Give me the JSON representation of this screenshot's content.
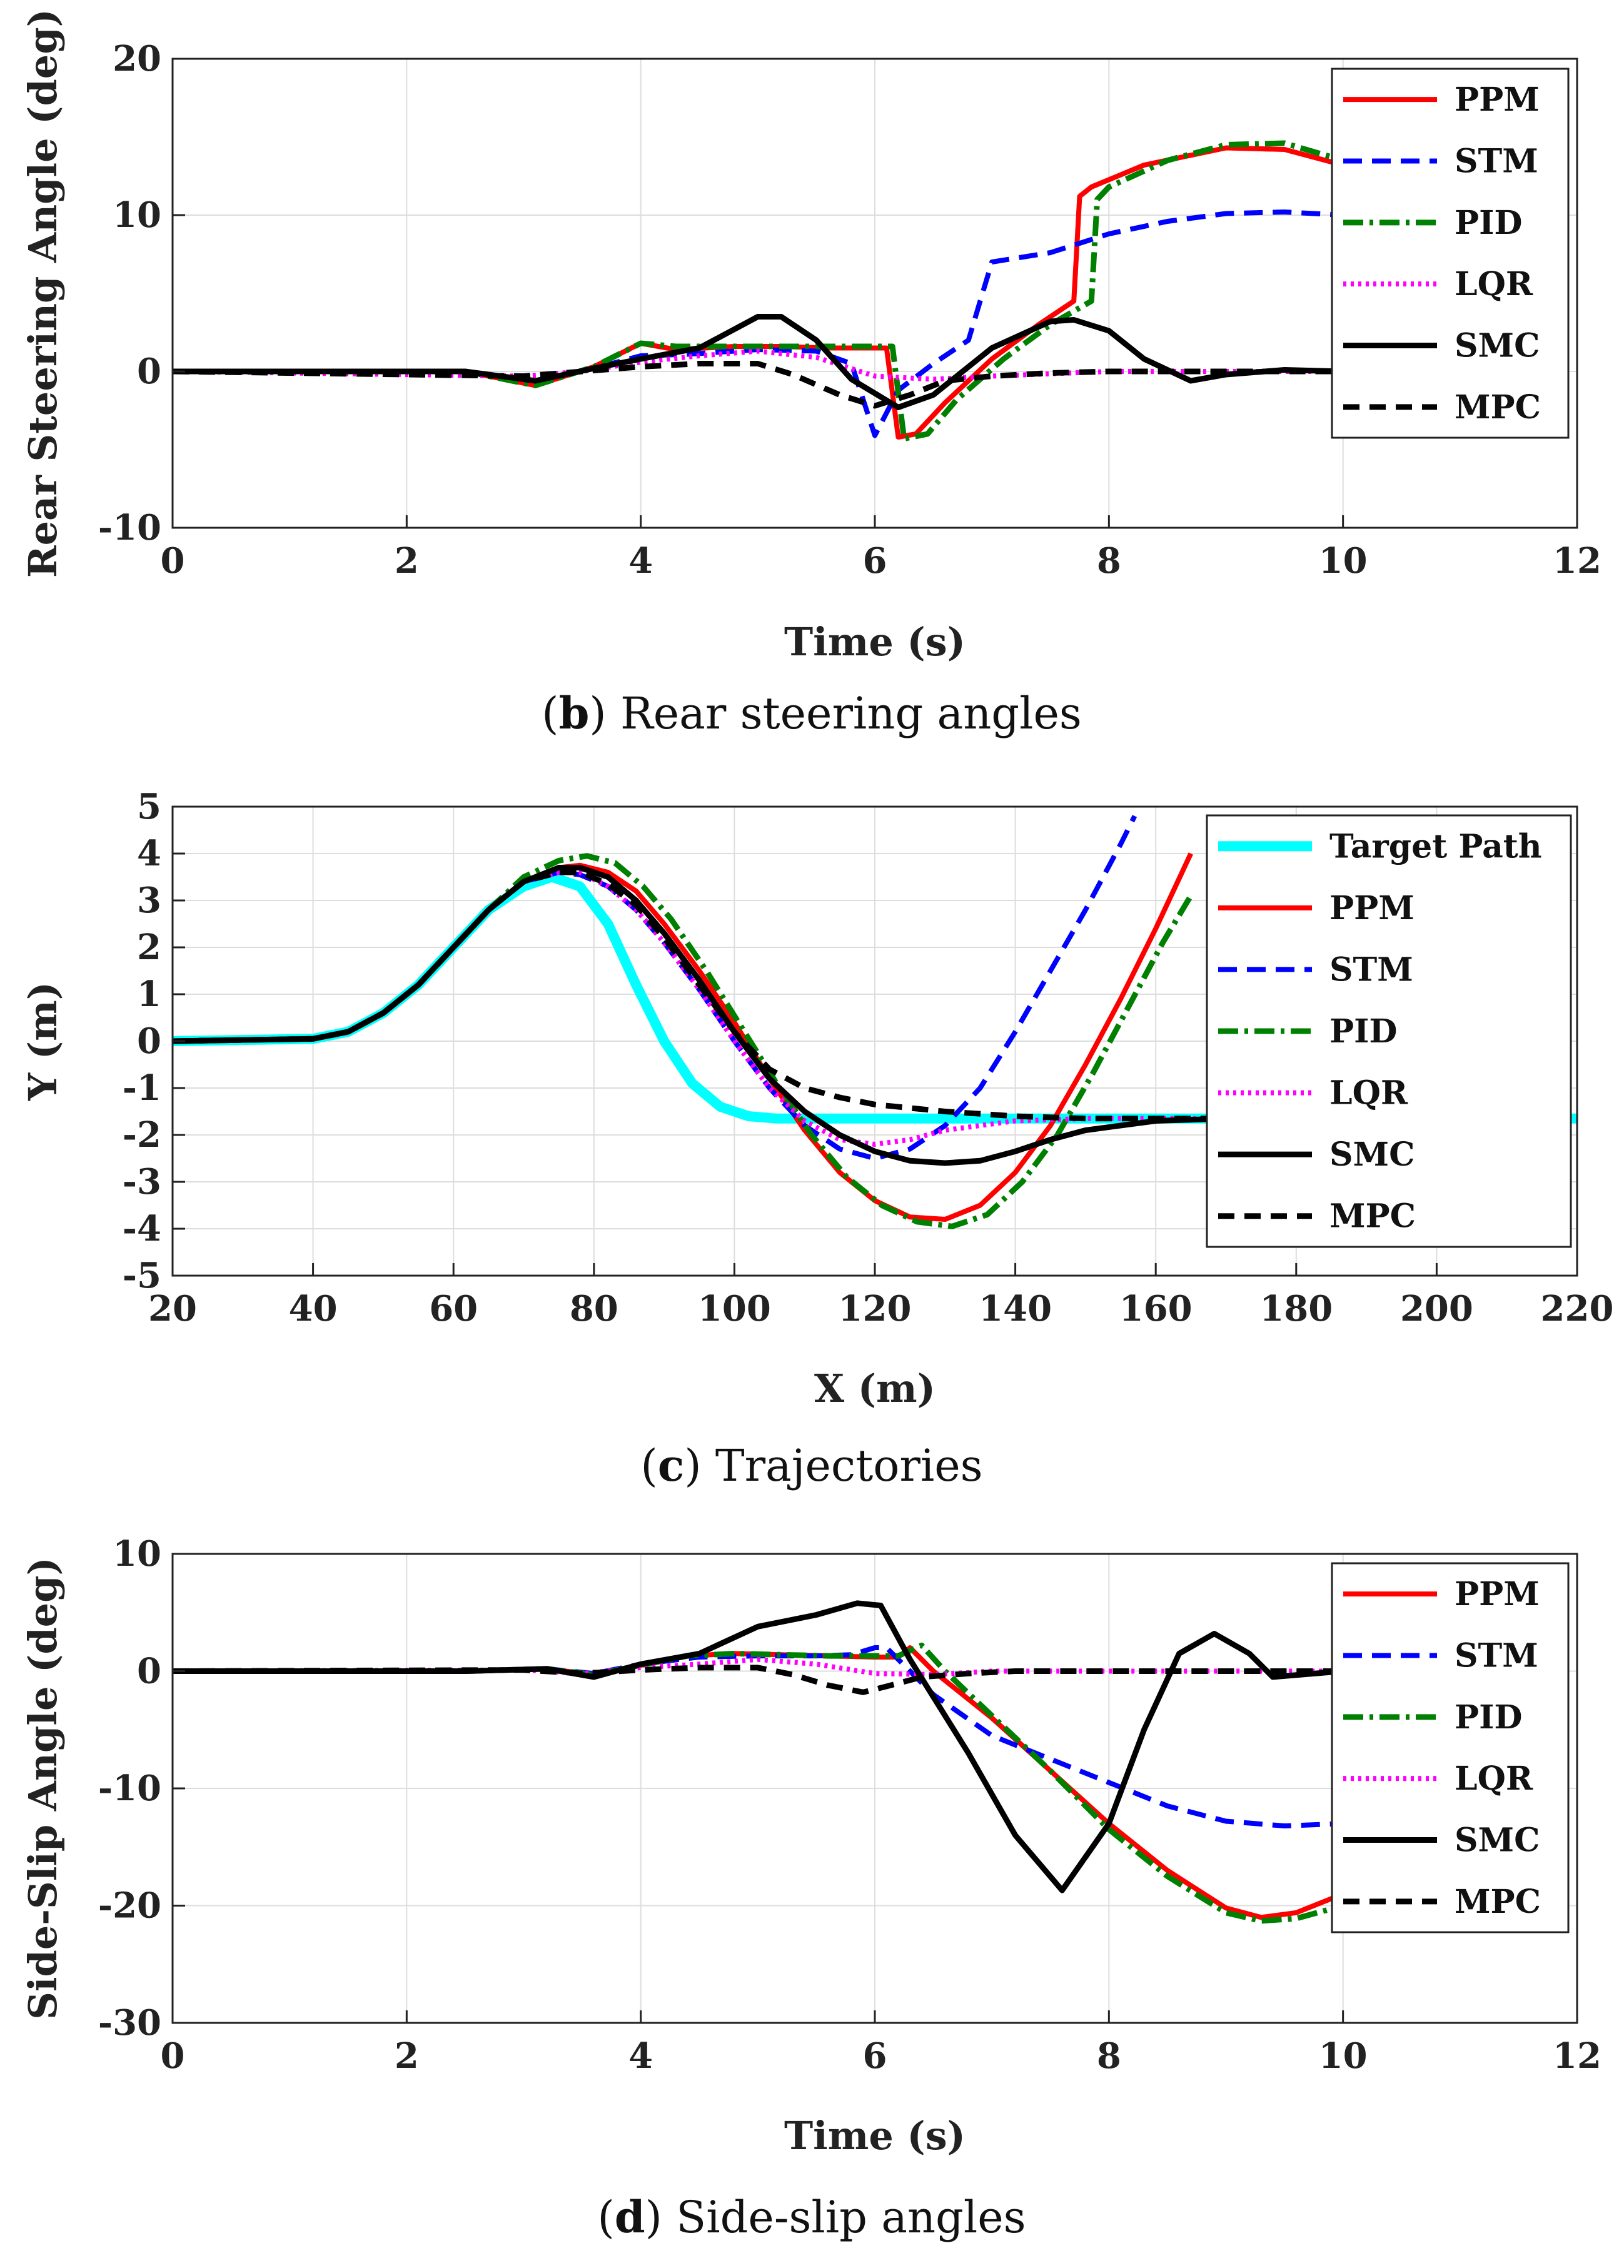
{
  "colors": {
    "target": "#00FFFF",
    "PPM": "#FF0000",
    "STM": "#0000FF",
    "PID": "#008000",
    "LQR": "#FF00FF",
    "SMC": "#000000",
    "MPC": "#000000"
  },
  "chart_data": [
    {
      "id": "b",
      "type": "line",
      "caption_letter": "b",
      "caption_text": " Rear steering angles",
      "title": "",
      "xlabel": "Time (s)",
      "ylabel": "Rear Steering Angle (deg)",
      "xlim": [
        0,
        12
      ],
      "ylim": [
        -10,
        20
      ],
      "xticks": [
        "0",
        "2",
        "4",
        "6",
        "8",
        "10",
        "12"
      ],
      "yticks": [
        "-10",
        "0",
        "10",
        "20"
      ],
      "legend_position": "top-right",
      "grid": true,
      "series": [
        {
          "name": "PPM",
          "style": "solid",
          "x": [
            0,
            2.5,
            3.1,
            3.6,
            4.0,
            4.3,
            4.8,
            5.2,
            5.6,
            6.1,
            6.2,
            6.35,
            6.6,
            7.0,
            7.4,
            7.7,
            7.75,
            7.85,
            8.3,
            9.0,
            9.5,
            10.0
          ],
          "y": [
            0,
            0,
            -0.9,
            0.3,
            1.8,
            1.4,
            1.6,
            1.6,
            1.5,
            1.5,
            -4.2,
            -4.0,
            -2,
            0.8,
            3,
            4.5,
            11.2,
            11.8,
            13.2,
            14.3,
            14.2,
            13.2
          ]
        },
        {
          "name": "STM",
          "style": "dashed",
          "x": [
            0,
            2.5,
            3.1,
            3.6,
            4.0,
            4.4,
            5.0,
            5.5,
            5.8,
            6.0,
            6.2,
            6.5,
            6.8,
            7.0,
            7.5,
            8.0,
            8.5,
            9.0,
            9.5,
            10.0
          ],
          "y": [
            0,
            0,
            -0.6,
            0.2,
            1.0,
            1.1,
            1.4,
            1.3,
            0.5,
            -4.1,
            -1.2,
            0.5,
            2,
            7,
            7.6,
            8.8,
            9.6,
            10.1,
            10.2,
            10.0
          ]
        },
        {
          "name": "PID",
          "style": "dashdot",
          "x": [
            0,
            2.5,
            3.1,
            3.6,
            4.0,
            4.3,
            4.8,
            5.2,
            5.6,
            6.15,
            6.25,
            6.45,
            6.7,
            7.1,
            7.5,
            7.85,
            7.9,
            8.0,
            8.5,
            9.0,
            9.5,
            10.0
          ],
          "y": [
            0,
            0,
            -0.9,
            0.3,
            1.8,
            1.6,
            1.6,
            1.6,
            1.6,
            1.6,
            -4.3,
            -4.0,
            -1.8,
            0.8,
            3,
            4.5,
            11,
            11.8,
            13.5,
            14.5,
            14.6,
            13.5
          ]
        },
        {
          "name": "LQR",
          "style": "dotted",
          "x": [
            0,
            3,
            3.5,
            4.0,
            4.5,
            5.0,
            5.5,
            6.0,
            6.5,
            7.0,
            8.0,
            9.0,
            10.0
          ],
          "y": [
            0,
            -0.3,
            0,
            0.6,
            1.0,
            1.3,
            0.9,
            -0.3,
            -0.5,
            -0.3,
            0,
            0,
            0
          ]
        },
        {
          "name": "SMC",
          "style": "solid-thick",
          "x": [
            0,
            2.5,
            3.1,
            3.6,
            4.0,
            4.5,
            5.0,
            5.2,
            5.5,
            5.8,
            6.2,
            6.5,
            7.0,
            7.5,
            7.7,
            8.0,
            8.3,
            8.7,
            9.0,
            9.5,
            10.0
          ],
          "y": [
            0,
            0,
            -0.6,
            0.2,
            0.8,
            1.5,
            3.5,
            3.5,
            2,
            -0.5,
            -2.3,
            -1.5,
            1.5,
            3.2,
            3.3,
            2.6,
            0.8,
            -0.6,
            -0.2,
            0.1,
            0
          ]
        },
        {
          "name": "MPC",
          "style": "dashed-thick",
          "x": [
            0,
            3,
            3.5,
            4.0,
            4.5,
            5.0,
            5.3,
            5.7,
            6.0,
            6.3,
            6.6,
            7.0,
            7.5,
            8.0,
            9.0,
            10.0
          ],
          "y": [
            0,
            -0.3,
            0,
            0.3,
            0.5,
            0.5,
            -0.2,
            -1.5,
            -2.2,
            -1.5,
            -0.6,
            -0.3,
            -0.1,
            0,
            0,
            0
          ]
        }
      ]
    },
    {
      "id": "c",
      "type": "line",
      "caption_letter": "c",
      "caption_text": " Trajectories",
      "title": "",
      "xlabel": "X (m)",
      "ylabel": "Y (m)",
      "xlim": [
        20,
        220
      ],
      "ylim": [
        -5,
        5
      ],
      "xticks": [
        "20",
        "40",
        "60",
        "80",
        "100",
        "120",
        "140",
        "160",
        "180",
        "200",
        "220"
      ],
      "yticks": [
        "-5",
        "-4",
        "-3",
        "-2",
        "-1",
        "0",
        "1",
        "2",
        "3",
        "4",
        "5"
      ],
      "legend_position": "top-right",
      "grid": true,
      "series": [
        {
          "name": "Target Path",
          "style": "cyan-thick",
          "x": [
            20,
            40,
            45,
            50,
            55,
            60,
            65,
            70,
            74,
            78,
            82,
            86,
            90,
            94,
            98,
            102,
            106,
            110,
            120,
            140,
            160,
            180,
            200,
            220
          ],
          "y": [
            0,
            0.05,
            0.2,
            0.6,
            1.2,
            2.0,
            2.8,
            3.3,
            3.5,
            3.3,
            2.5,
            1.2,
            0,
            -0.9,
            -1.4,
            -1.6,
            -1.65,
            -1.65,
            -1.65,
            -1.65,
            -1.65,
            -1.65,
            -1.65,
            -1.65
          ]
        },
        {
          "name": "PPM",
          "style": "solid",
          "x": [
            20,
            40,
            45,
            50,
            55,
            60,
            65,
            70,
            75,
            78,
            82,
            86,
            90,
            95,
            100,
            105,
            110,
            115,
            120,
            125,
            130,
            135,
            140,
            145,
            150,
            155,
            160,
            165
          ],
          "y": [
            0,
            0.05,
            0.2,
            0.6,
            1.2,
            2.0,
            2.8,
            3.4,
            3.7,
            3.75,
            3.6,
            3.2,
            2.5,
            1.5,
            0.4,
            -0.8,
            -1.9,
            -2.8,
            -3.4,
            -3.75,
            -3.8,
            -3.5,
            -2.8,
            -1.8,
            -0.5,
            0.9,
            2.4,
            4.0
          ]
        },
        {
          "name": "STM",
          "style": "dashed",
          "x": [
            20,
            40,
            45,
            50,
            55,
            60,
            65,
            70,
            75,
            78,
            82,
            86,
            90,
            95,
            100,
            105,
            110,
            115,
            120,
            125,
            130,
            135,
            140,
            145,
            150,
            155,
            157
          ],
          "y": [
            0,
            0.05,
            0.2,
            0.6,
            1.2,
            2.0,
            2.8,
            3.4,
            3.6,
            3.55,
            3.3,
            2.8,
            2.1,
            1.1,
            0,
            -1.0,
            -1.8,
            -2.3,
            -2.5,
            -2.3,
            -1.8,
            -1.0,
            0.2,
            1.5,
            2.8,
            4.2,
            4.8
          ]
        },
        {
          "name": "PID",
          "style": "dashdot",
          "x": [
            20,
            40,
            45,
            50,
            55,
            60,
            65,
            70,
            75,
            79,
            83,
            87,
            91,
            96,
            101,
            106,
            111,
            116,
            121,
            126,
            131,
            136,
            141,
            146,
            151,
            156,
            161,
            165
          ],
          "y": [
            0,
            0.05,
            0.2,
            0.6,
            1.2,
            2.0,
            2.8,
            3.5,
            3.85,
            3.95,
            3.8,
            3.3,
            2.6,
            1.5,
            0.3,
            -0.9,
            -2.0,
            -2.9,
            -3.5,
            -3.85,
            -3.95,
            -3.7,
            -3.0,
            -2.0,
            -0.7,
            0.7,
            2.1,
            3.1
          ]
        },
        {
          "name": "LQR",
          "style": "dotted",
          "x": [
            20,
            40,
            45,
            50,
            55,
            60,
            65,
            70,
            75,
            78,
            82,
            86,
            90,
            95,
            100,
            105,
            110,
            115,
            120,
            125,
            130,
            140,
            150,
            160,
            170
          ],
          "y": [
            0,
            0.05,
            0.2,
            0.6,
            1.2,
            2.0,
            2.8,
            3.4,
            3.6,
            3.6,
            3.3,
            2.8,
            2.1,
            1.1,
            0,
            -1.0,
            -1.7,
            -2.1,
            -2.2,
            -2.1,
            -1.9,
            -1.7,
            -1.65,
            -1.65,
            -1.65
          ]
        },
        {
          "name": "SMC",
          "style": "solid-thick",
          "x": [
            20,
            40,
            45,
            50,
            55,
            60,
            65,
            70,
            75,
            78,
            82,
            86,
            90,
            95,
            100,
            105,
            110,
            115,
            120,
            125,
            130,
            135,
            140,
            145,
            150,
            160,
            170
          ],
          "y": [
            0,
            0.05,
            0.2,
            0.6,
            1.2,
            2.0,
            2.8,
            3.4,
            3.7,
            3.7,
            3.5,
            3.0,
            2.3,
            1.3,
            0.2,
            -0.8,
            -1.5,
            -2.0,
            -2.35,
            -2.55,
            -2.6,
            -2.55,
            -2.35,
            -2.1,
            -1.9,
            -1.7,
            -1.65
          ]
        },
        {
          "name": "MPC",
          "style": "dashed-thick",
          "x": [
            20,
            40,
            45,
            50,
            55,
            60,
            65,
            70,
            75,
            78,
            82,
            86,
            90,
            95,
            100,
            105,
            110,
            115,
            120,
            130,
            140,
            150,
            160,
            170
          ],
          "y": [
            0,
            0.05,
            0.2,
            0.6,
            1.2,
            2.0,
            2.8,
            3.4,
            3.6,
            3.6,
            3.35,
            2.9,
            2.2,
            1.2,
            0.2,
            -0.6,
            -1.0,
            -1.2,
            -1.35,
            -1.5,
            -1.6,
            -1.65,
            -1.65,
            -1.65
          ]
        }
      ]
    },
    {
      "id": "d",
      "type": "line",
      "caption_letter": "d",
      "caption_text": " Side-slip angles",
      "title": "",
      "xlabel": "Time (s)",
      "ylabel": "Side-Slip Angle (deg)",
      "xlim": [
        0,
        12
      ],
      "ylim": [
        -30,
        10
      ],
      "xticks": [
        "0",
        "2",
        "4",
        "6",
        "8",
        "10",
        "12"
      ],
      "yticks": [
        "-30",
        "-20",
        "-10",
        "0",
        "10"
      ],
      "legend_position": "top-right",
      "grid": true,
      "series": [
        {
          "name": "PPM",
          "style": "solid",
          "x": [
            0,
            2.5,
            3.2,
            3.6,
            4.0,
            4.4,
            4.8,
            5.2,
            5.6,
            6.0,
            6.2,
            6.3,
            6.5,
            7.0,
            7.5,
            8.0,
            8.5,
            9.0,
            9.3,
            9.6,
            10.0
          ],
          "y": [
            0,
            0,
            0.2,
            -0.3,
            0.5,
            1.3,
            1.5,
            1.4,
            1.3,
            1.2,
            1.2,
            2,
            0,
            -4,
            -8.5,
            -13,
            -17,
            -20.2,
            -21,
            -20.6,
            -19
          ]
        },
        {
          "name": "STM",
          "style": "dashed",
          "x": [
            0,
            2.5,
            3.2,
            3.6,
            4.0,
            4.5,
            5.0,
            5.5,
            5.8,
            6.0,
            6.1,
            6.3,
            6.5,
            7.0,
            7.5,
            8.0,
            8.5,
            9.0,
            9.5,
            10.0
          ],
          "y": [
            0,
            0,
            0.2,
            -0.2,
            0.6,
            1.2,
            1.3,
            1.3,
            1.4,
            2,
            2,
            0,
            -2,
            -5.5,
            -7.5,
            -9.5,
            -11.5,
            -12.8,
            -13.2,
            -13
          ]
        },
        {
          "name": "PID",
          "style": "dashdot",
          "x": [
            0,
            2.5,
            3.2,
            3.6,
            4.0,
            4.4,
            4.8,
            5.2,
            5.6,
            6.0,
            6.2,
            6.4,
            6.6,
            7.0,
            7.5,
            8.0,
            8.5,
            9.0,
            9.3,
            9.6,
            10.0
          ],
          "y": [
            0,
            0,
            0.2,
            -0.3,
            0.5,
            1.3,
            1.5,
            1.4,
            1.3,
            1.3,
            1.3,
            2.2,
            0,
            -3.8,
            -8.5,
            -13.5,
            -17.5,
            -20.6,
            -21.3,
            -21.1,
            -20
          ]
        },
        {
          "name": "LQR",
          "style": "dotted",
          "x": [
            0,
            3,
            3.5,
            4.0,
            4.5,
            5.0,
            5.5,
            6.0,
            6.5,
            7.0,
            8.0,
            9.0,
            10.0
          ],
          "y": [
            0,
            0.1,
            -0.2,
            0.3,
            0.6,
            1.0,
            0.6,
            -0.2,
            -0.3,
            0,
            0,
            0,
            0
          ]
        },
        {
          "name": "SMC",
          "style": "solid-thick",
          "x": [
            0,
            2.5,
            3.2,
            3.6,
            4.0,
            4.5,
            5.0,
            5.5,
            5.85,
            6.05,
            6.3,
            6.8,
            7.2,
            7.6,
            8.0,
            8.3,
            8.6,
            8.9,
            9.2,
            9.4,
            10.0
          ],
          "y": [
            0,
            0,
            0.2,
            -0.5,
            0.6,
            1.5,
            3.8,
            4.8,
            5.8,
            5.6,
            1,
            -7,
            -14,
            -18.7,
            -13,
            -5,
            1.5,
            3.2,
            1.5,
            -0.5,
            0
          ]
        },
        {
          "name": "MPC",
          "style": "dashed-thick",
          "x": [
            0,
            3,
            3.5,
            4.0,
            4.5,
            5.0,
            5.3,
            5.6,
            5.9,
            6.1,
            6.4,
            6.8,
            7.2,
            8.0,
            9.0,
            10.0
          ],
          "y": [
            0,
            0.1,
            -0.2,
            0.1,
            0.3,
            0.3,
            -0.3,
            -1.2,
            -1.8,
            -1.3,
            -0.5,
            -0.2,
            0,
            0,
            0,
            0
          ]
        }
      ]
    }
  ]
}
